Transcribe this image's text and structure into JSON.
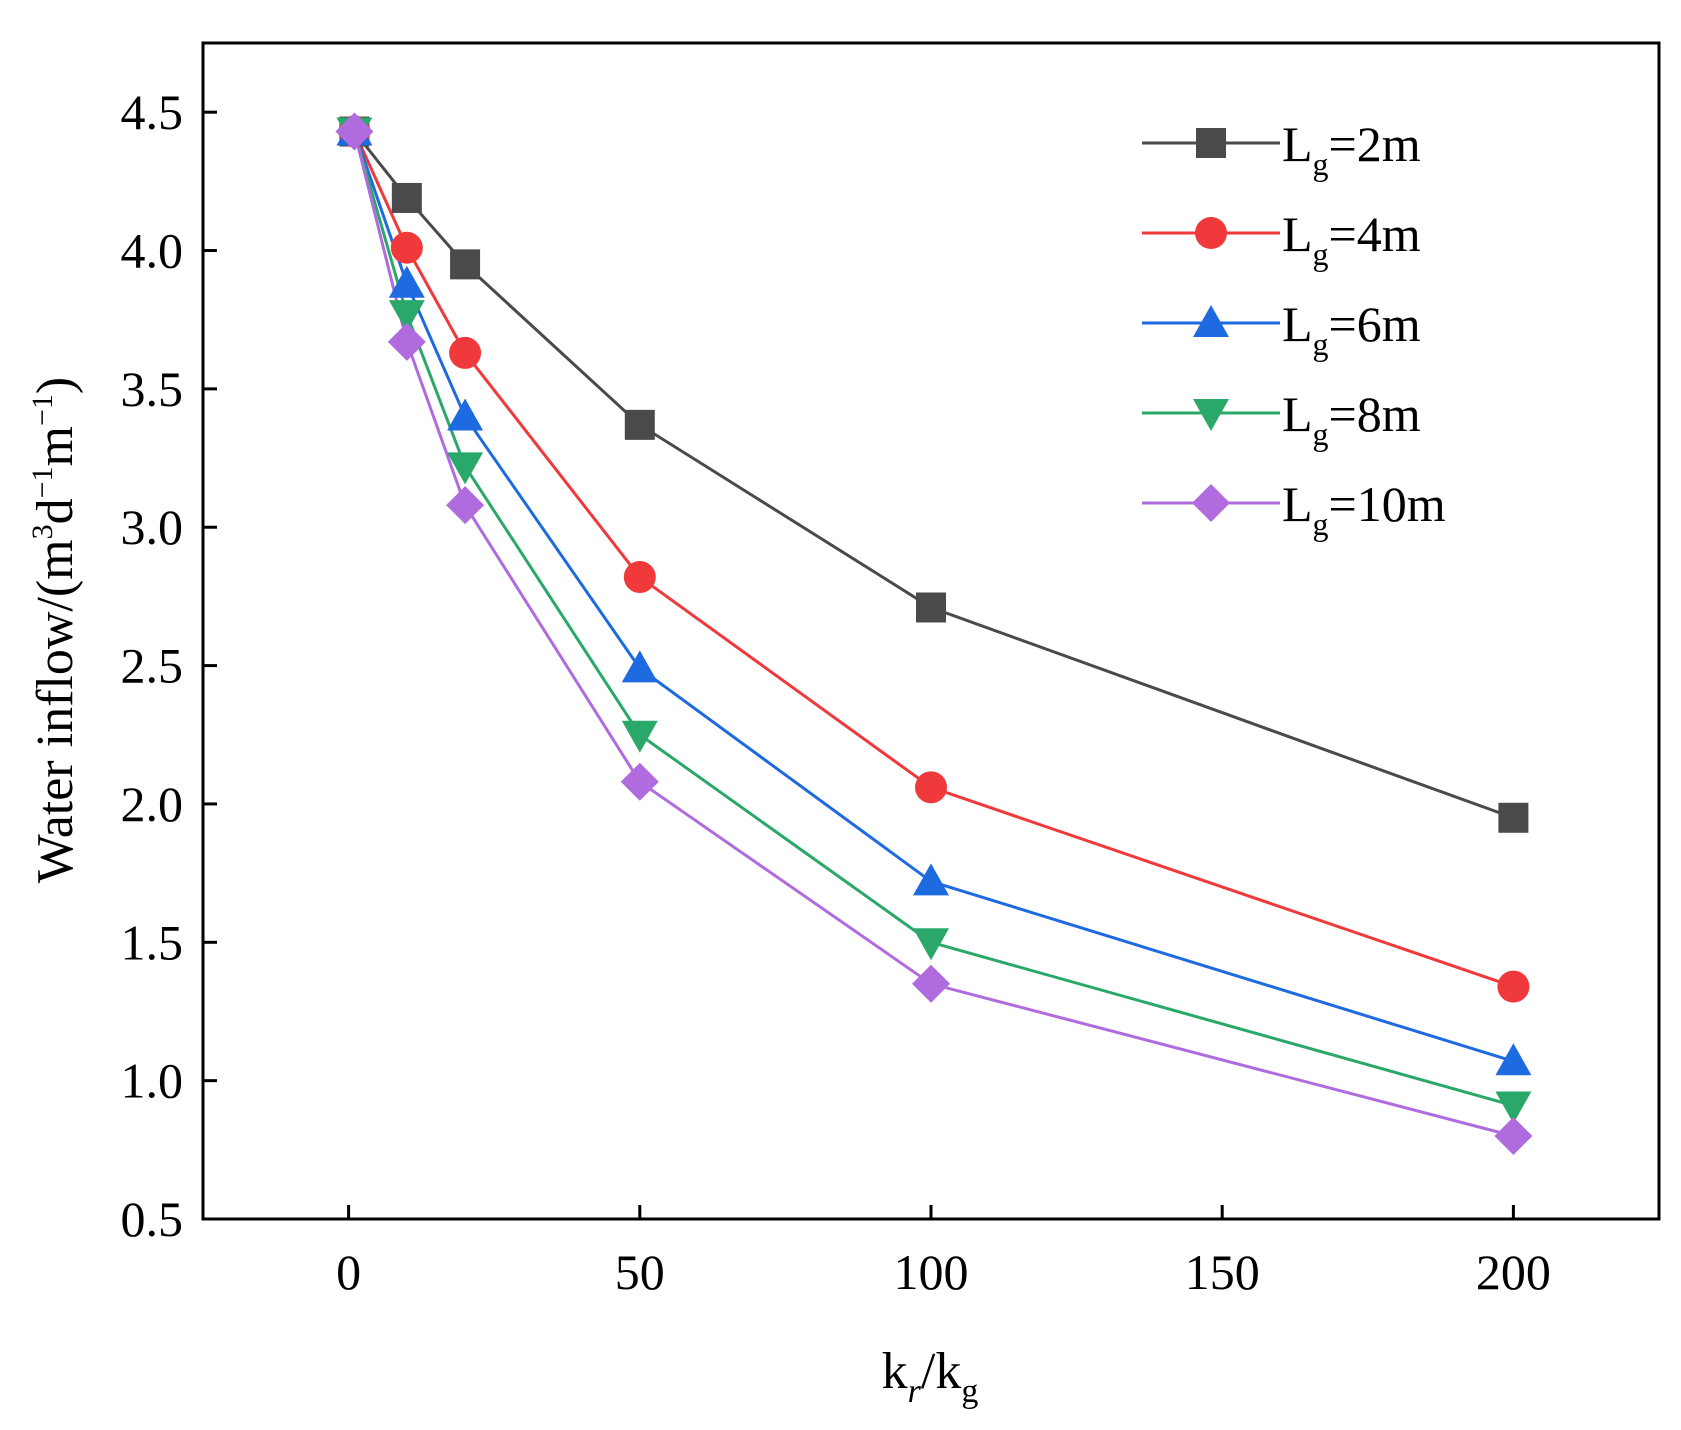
{
  "chart_data": {
    "type": "line",
    "xlabel": {
      "prefix": "k",
      "sub1": "r",
      "slash": "/k",
      "sub2": "g"
    },
    "ylabel": {
      "main": "Water inflow/(m",
      "sup1": "3",
      "mid1": "d",
      "sup2": "−1",
      "mid2": "m",
      "sup3": "−1",
      "end": ")"
    },
    "x": [
      1,
      10,
      20,
      50,
      100,
      200
    ],
    "xlim": [
      -25,
      225
    ],
    "ylim": [
      0.5,
      4.75
    ],
    "xticks": [
      0,
      50,
      100,
      150,
      200
    ],
    "xtick_labels": [
      "0",
      "50",
      "100",
      "150",
      "200"
    ],
    "yticks": [
      0.5,
      1.0,
      1.5,
      2.0,
      2.5,
      3.0,
      3.5,
      4.0,
      4.5
    ],
    "ytick_labels": [
      "0.5",
      "1.0",
      "1.5",
      "2.0",
      "2.5",
      "3.0",
      "3.5",
      "4.0",
      "4.5"
    ],
    "legend_position": "top-right",
    "series": [
      {
        "name": "Lg=2m",
        "label_main": "L",
        "label_sub": "g",
        "label_rest": "=2m",
        "color": "#4a4a4a",
        "marker": "square",
        "values": [
          4.43,
          4.19,
          3.95,
          3.37,
          2.71,
          1.95
        ]
      },
      {
        "name": "Lg=4m",
        "label_main": "L",
        "label_sub": "g",
        "label_rest": "=4m",
        "color": "#f0393b",
        "marker": "circle",
        "values": [
          4.43,
          4.01,
          3.63,
          2.82,
          2.06,
          1.34
        ]
      },
      {
        "name": "Lg=6m",
        "label_main": "L",
        "label_sub": "g",
        "label_rest": "=6m",
        "color": "#1e6ae0",
        "marker": "triangle-up",
        "values": [
          4.43,
          3.88,
          3.4,
          2.49,
          1.72,
          1.07
        ]
      },
      {
        "name": "Lg=8m",
        "label_main": "L",
        "label_sub": "g",
        "label_rest": "=8m",
        "color": "#2aa86a",
        "marker": "triangle-down",
        "values": [
          4.43,
          3.77,
          3.22,
          2.25,
          1.5,
          0.91
        ]
      },
      {
        "name": "Lg=10m",
        "label_main": "L",
        "label_sub": "g",
        "label_rest": "=10m",
        "color": "#b06cde",
        "marker": "diamond",
        "values": [
          4.43,
          3.67,
          3.08,
          2.08,
          1.35,
          0.8
        ]
      }
    ]
  }
}
